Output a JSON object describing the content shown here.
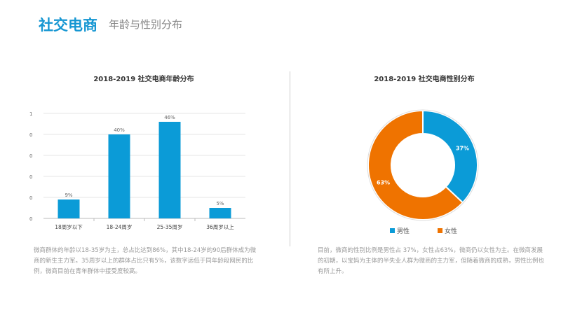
{
  "header": {
    "title": "社交电商",
    "subtitle": "年龄与性别分布"
  },
  "colors": {
    "blue": "#0b9bd7",
    "orange": "#ef7300",
    "accent": "#1596d2"
  },
  "chart_data": [
    {
      "type": "bar",
      "title": "2018-2019 社交电商年龄分布",
      "categories": [
        "18周岁以下",
        "18-24周岁",
        "25-35周岁",
        "36周岁以上"
      ],
      "values": [
        9,
        40,
        46,
        5
      ],
      "data_labels": [
        "9%",
        "40%",
        "46%",
        "5%"
      ],
      "ylim": [
        0,
        50
      ],
      "ytick_labels": [
        "0",
        "0",
        "0",
        "0",
        "0",
        "1"
      ],
      "grid": true
    },
    {
      "type": "pie",
      "donut": true,
      "title": "2018-2019 社交电商性别分布",
      "categories": [
        "男性",
        "女性"
      ],
      "values": [
        37,
        63
      ],
      "data_labels": [
        "37%",
        "63%"
      ],
      "legend": "bottom"
    }
  ],
  "texts": {
    "age_desc": "微商群体的年龄以18-35岁为主，总占比达到86%，其中18-24岁的90后群体成为微商的新生主力军。35周岁以上的群体占比只有5%，该数字远低于同年龄段网民的比例，微商目前在青年群体中接受度较高。",
    "gender_desc": "目前，微商的性别比例是男性占 37%，女性占63%，微商仍以女性为主。在微商发展的初期，以宝妈为主体的半失业人群为微商的主力军，但随着微商的成熟，男性比例也有所上升。"
  }
}
